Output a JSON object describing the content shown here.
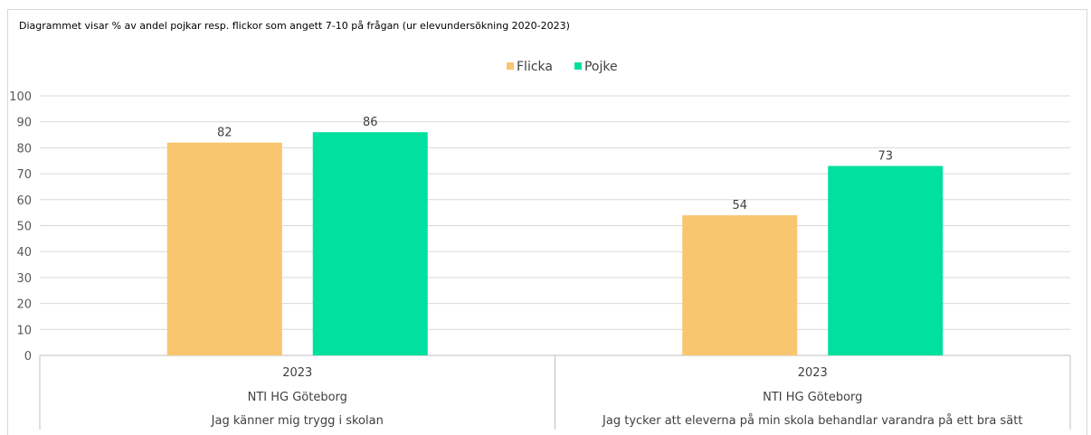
{
  "chart_data": {
    "type": "bar",
    "title": "Diagrammet visar % av andel pojkar resp. flickor som angett 7-10 på frågan (ur elevundersökning 2020-2023)",
    "ylim": [
      0,
      100
    ],
    "yticks": [
      0,
      10,
      20,
      30,
      40,
      50,
      60,
      70,
      80,
      90,
      100
    ],
    "grid": true,
    "legend_position": "top-center",
    "categories": [
      {
        "year": "2023",
        "school": "NTI HG Göteborg",
        "question": "Jag känner mig trygg i skolan"
      },
      {
        "year": "2023",
        "school": "NTI HG Göteborg",
        "question": "Jag tycker att eleverna på min skola behandlar varandra på ett bra sätt"
      }
    ],
    "series": [
      {
        "name": "Flicka",
        "color": "#f8c66e",
        "values": [
          82,
          54
        ]
      },
      {
        "name": "Pojke",
        "color": "#00e09e",
        "values": [
          86,
          73
        ]
      }
    ]
  }
}
